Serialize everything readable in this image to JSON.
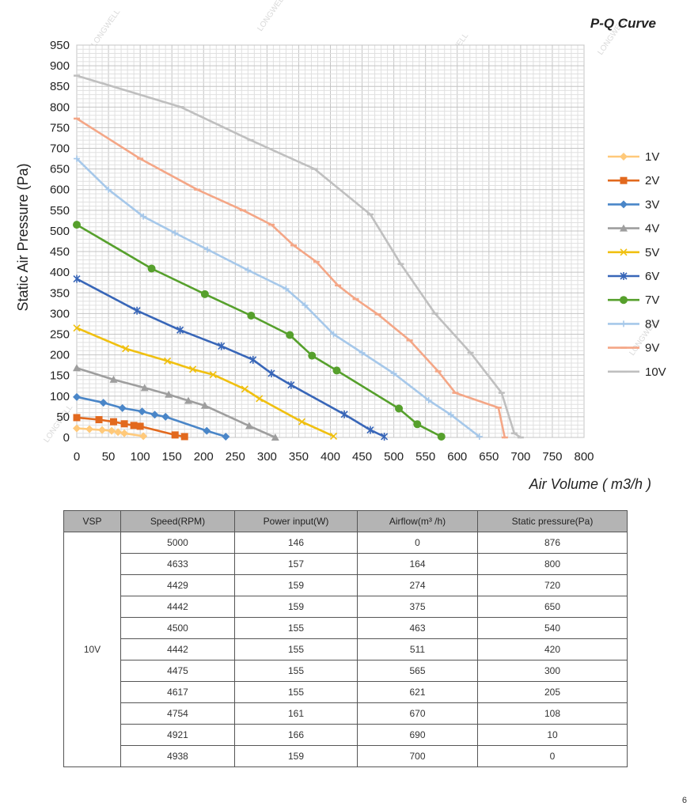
{
  "chart_data": {
    "type": "line",
    "title": "P-Q Curve",
    "xlabel": "Air Volume ( m3/h )",
    "ylabel": "Static Air Pressure  (Pa)",
    "xlim": [
      0,
      800
    ],
    "ylim": [
      0,
      950
    ],
    "xticks": [
      0,
      50,
      100,
      150,
      200,
      250,
      300,
      350,
      400,
      450,
      500,
      550,
      600,
      650,
      700,
      750,
      800
    ],
    "yticks": [
      0,
      50,
      100,
      150,
      200,
      250,
      300,
      350,
      400,
      450,
      500,
      550,
      600,
      650,
      700,
      750,
      800,
      850,
      900,
      950
    ],
    "grid": true,
    "legend_position": "right",
    "series": [
      {
        "name": "1V",
        "color": "#ffc97a",
        "marker": "diamond",
        "x": [
          0,
          20,
          40,
          55,
          65,
          75,
          105
        ],
        "y": [
          22,
          20,
          18,
          16,
          13,
          10,
          3
        ]
      },
      {
        "name": "2V",
        "color": "#e2691e",
        "marker": "square",
        "x": [
          0,
          35,
          58,
          75,
          90,
          100,
          155,
          170
        ],
        "y": [
          48,
          43,
          38,
          33,
          29,
          27,
          6,
          2
        ]
      },
      {
        "name": "3V",
        "color": "#4a86c8",
        "marker": "diamond",
        "x": [
          0,
          42,
          72,
          103,
          123,
          140,
          205,
          235
        ],
        "y": [
          98,
          84,
          71,
          63,
          55,
          50,
          16,
          2
        ]
      },
      {
        "name": "4V",
        "color": "#9e9e9e",
        "marker": "triangle",
        "x": [
          0,
          58,
          107,
          145,
          176,
          202,
          272,
          313
        ],
        "y": [
          168,
          140,
          120,
          104,
          89,
          77,
          28,
          0
        ]
      },
      {
        "name": "5V",
        "color": "#f0c010",
        "marker": "x",
        "x": [
          0,
          77,
          143,
          183,
          215,
          265,
          288,
          355,
          405
        ],
        "y": [
          265,
          215,
          185,
          165,
          152,
          117,
          94,
          38,
          3
        ]
      },
      {
        "name": "6V",
        "color": "#3866b8",
        "marker": "star",
        "x": [
          0,
          95,
          163,
          228,
          278,
          307,
          338,
          422,
          463,
          485
        ],
        "y": [
          384,
          307,
          260,
          221,
          188,
          155,
          127,
          56,
          18,
          2
        ]
      },
      {
        "name": "7V",
        "color": "#56a02c",
        "marker": "circle",
        "x": [
          0,
          118,
          202,
          275,
          336,
          371,
          410,
          508,
          537,
          575
        ],
        "y": [
          515,
          409,
          347,
          295,
          248,
          198,
          162,
          70,
          32,
          2
        ]
      },
      {
        "name": "8V",
        "color": "#a6c8ea",
        "marker": "plus",
        "x": [
          0,
          50,
          105,
          155,
          206,
          270,
          330,
          360,
          405,
          450,
          500,
          555,
          590,
          635
        ],
        "y": [
          675,
          600,
          535,
          495,
          455,
          405,
          360,
          320,
          250,
          205,
          155,
          90,
          55,
          2
        ]
      },
      {
        "name": "9V",
        "color": "#f4a686",
        "marker": "dash",
        "x": [
          0,
          100,
          190,
          262,
          307,
          342,
          378,
          412,
          440,
          475,
          525,
          570,
          597,
          665,
          675
        ],
        "y": [
          772,
          675,
          600,
          550,
          515,
          465,
          425,
          368,
          335,
          298,
          235,
          160,
          108,
          72,
          0
        ]
      },
      {
        "name": "10V",
        "color": "#bfbfbf",
        "marker": "dash",
        "x": [
          0,
          164,
          274,
          375,
          463,
          511,
          565,
          621,
          670,
          690,
          700
        ],
        "y": [
          876,
          800,
          720,
          650,
          540,
          420,
          300,
          205,
          108,
          10,
          0
        ]
      }
    ]
  },
  "table": {
    "headers": [
      "VSP",
      "Speed(RPM)",
      "Power input(W)",
      "Airflow(m³ /h)",
      "Static pressure(Pa)"
    ],
    "vsp": "10V",
    "rows": [
      [
        "5000",
        "146",
        "0",
        "876"
      ],
      [
        "4633",
        "157",
        "164",
        "800"
      ],
      [
        "4429",
        "159",
        "274",
        "720"
      ],
      [
        "4442",
        "159",
        "375",
        "650"
      ],
      [
        "4500",
        "155",
        "463",
        "540"
      ],
      [
        "4442",
        "155",
        "511",
        "420"
      ],
      [
        "4475",
        "155",
        "565",
        "300"
      ],
      [
        "4617",
        "155",
        "621",
        "205"
      ],
      [
        "4754",
        "161",
        "670",
        "108"
      ],
      [
        "4921",
        "166",
        "690",
        "10"
      ],
      [
        "4938",
        "159",
        "700",
        "0"
      ]
    ]
  },
  "watermark": "LONGWELL",
  "page_number": "6"
}
